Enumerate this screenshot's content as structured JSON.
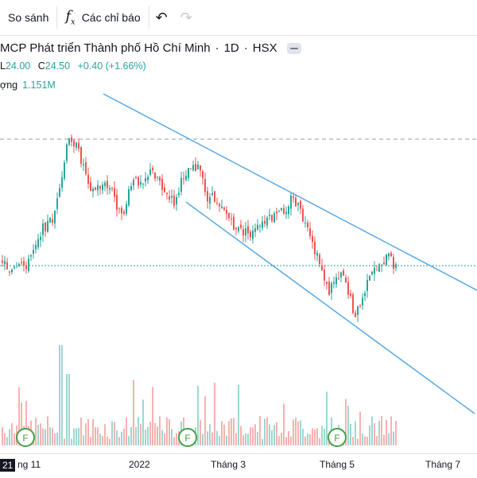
{
  "toolbar": {
    "compare_label": "So sánh",
    "indicators_label": "Các chỉ báo",
    "indicators_icon": "fx-icon",
    "undo_icon": "undo-icon",
    "redo_icon": "redo-icon"
  },
  "legend": {
    "title": "MCP Phát triển Thành phố Hồ Chí Minh",
    "interval": "1D",
    "exchange": "HSX",
    "low_label": "L",
    "low_value": "24.00",
    "close_label": "C",
    "close_value": "24.50",
    "change": "+0.40 (+1.66%)",
    "volume_label": "ợng",
    "volume_value": "1.151M"
  },
  "xaxis": {
    "cut_label": "21",
    "labels": [
      "ng 11",
      "2022",
      "Tháng 3",
      "Tháng 5",
      "Tháng 7"
    ]
  },
  "colors": {
    "up": "#26a69a",
    "down": "#ef5350",
    "trendline": "#5aa8e6",
    "earnings": "#43a047",
    "price_line": "#26a69a"
  },
  "chart_data": {
    "type": "candlestick",
    "y_axis_visible": false,
    "price_line": 24.5,
    "previous_high_line": 30.5,
    "earnings_markers": 3,
    "trend_channel": "descending, two parallel lines"
  }
}
